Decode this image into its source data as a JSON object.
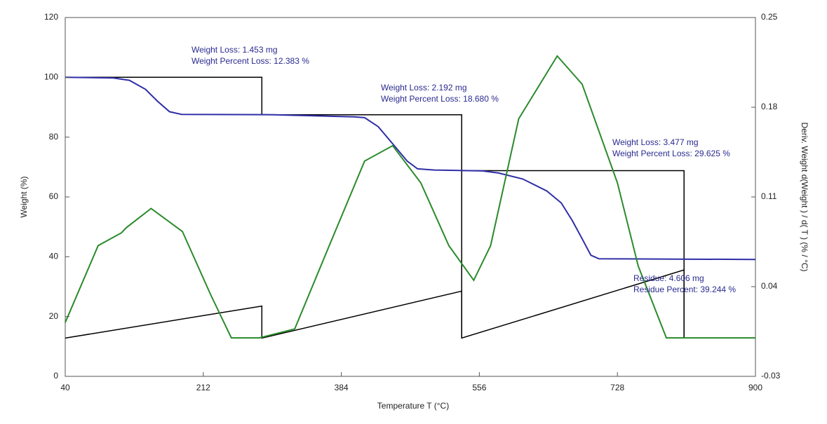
{
  "chart_data": {
    "type": "line",
    "xlabel": "Temperature T (°C)",
    "ylabel": "Weight  (%)",
    "y2label": "Deriv. Weight d(Weight ) / d( T )  (% / °C)",
    "xlim": [
      40,
      900
    ],
    "xticks": [
      40,
      212,
      384,
      556,
      728,
      900
    ],
    "ylim": [
      0,
      120
    ],
    "yticks": [
      0,
      20,
      40,
      60,
      80,
      100,
      120
    ],
    "y2lim": [
      -0.03,
      0.25
    ],
    "y2ticks": [
      -0.03,
      0.04,
      0.11,
      0.18,
      0.25
    ],
    "annotations": [
      "Weight Loss: 1.453 mg",
      "Weight Percent Loss: 12.383 %",
      "Weight Loss: 2.192 mg",
      "Weight Percent Loss: 18.680 %",
      "Weight Loss: 3.477 mg",
      "Weight Percent Loss: 29.625 %",
      "Residue: 4.606 mg",
      "Residue Percent: 39.244 %"
    ],
    "series": [
      {
        "color": "#000000",
        "x": [
          40,
          285,
          285,
          534,
          534,
          534,
          534,
          811,
          811
        ],
        "values": [
          100,
          100,
          87.5,
          87.5,
          12.8,
          null,
          68.8,
          68.8,
          12.8
        ]
      },
      {
        "color": "#000000",
        "x": [
          40,
          285,
          285,
          534,
          534,
          811,
          811
        ],
        "values": [
          12.8,
          23.5,
          12.8,
          28.5,
          12.8,
          35.6,
          12.8
        ]
      },
      {
        "color": "#2e2ea8",
        "x": [
          40,
          100,
          120,
          140,
          155,
          170,
          185,
          300,
          400,
          413,
          430,
          448,
          466,
          479,
          500,
          560,
          580,
          610,
          640,
          658,
          672,
          684,
          695,
          705,
          800,
          900
        ],
        "values": [
          100,
          99.8,
          99,
          96,
          92,
          88.5,
          87.6,
          87.5,
          86.8,
          86.5,
          83.5,
          77.8,
          72,
          69.4,
          69,
          68.7,
          68,
          66,
          62,
          58,
          52,
          46,
          40.5,
          39.3,
          39.2,
          39.1
        ]
      },
      {
        "color": "#2a8a2a",
        "axis": "y2",
        "x": [
          40,
          81,
          110,
          116,
          147,
          186,
          221,
          247,
          282,
          326,
          369,
          413,
          448,
          483,
          518,
          549,
          570,
          605,
          653,
          684,
          728,
          754,
          789,
          900
        ],
        "values": [
          0.012,
          0.072,
          0.082,
          0.086,
          0.101,
          0.083,
          0.034,
          0.0,
          0.0,
          0.007,
          0.072,
          0.138,
          0.15,
          0.121,
          0.072,
          0.045,
          0.072,
          0.171,
          0.22,
          0.198,
          0.121,
          0.056,
          0.0,
          0.0
        ]
      }
    ]
  }
}
